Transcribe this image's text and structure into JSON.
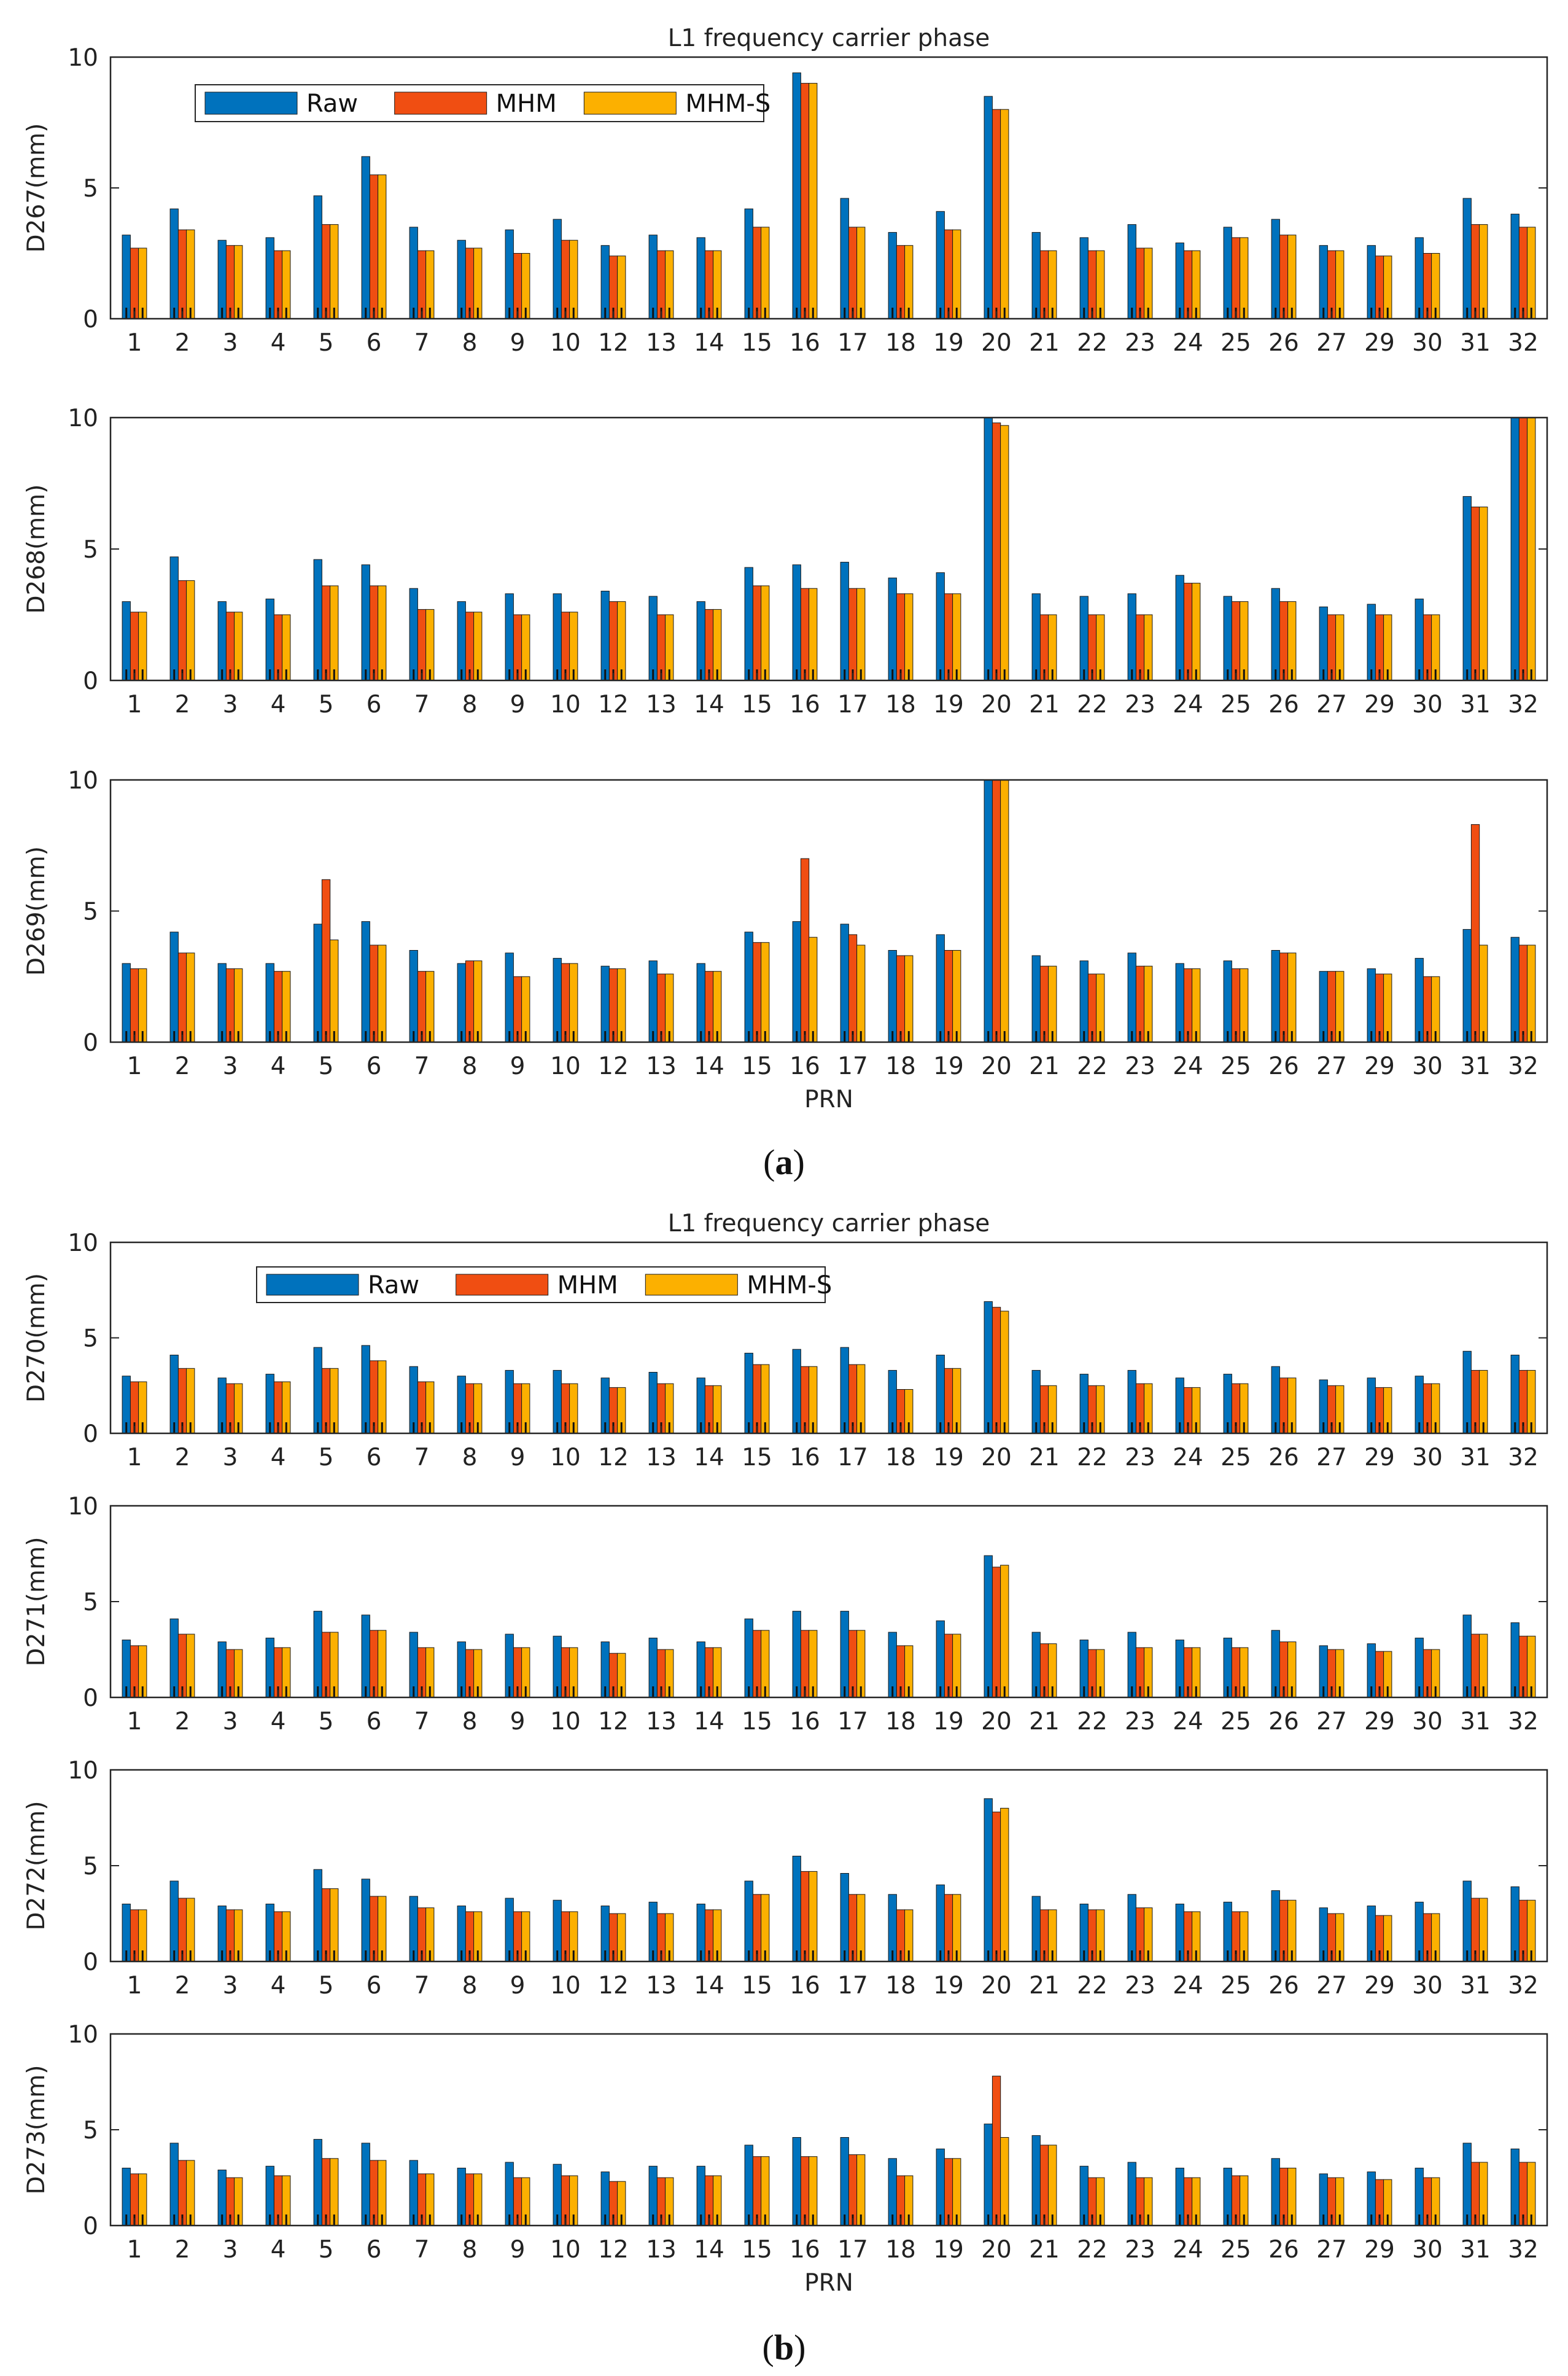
{
  "colors": {
    "raw": "#0072BD",
    "mhm": "#F04E12",
    "mhms": "#FCB000",
    "axis": "#262626"
  },
  "legend": [
    "Raw",
    "MHM",
    "MHM-S"
  ],
  "chart_data": [
    {
      "type": "bar",
      "group": "a",
      "title": "L1 frequency carrier phase",
      "ylabel": "D267(mm)",
      "xlabel": "",
      "ylim": [
        0,
        10
      ],
      "yticks": [
        "0",
        "5",
        "10"
      ],
      "categories": [
        "1",
        "2",
        "3",
        "4",
        "5",
        "6",
        "7",
        "8",
        "9",
        "10",
        "12",
        "13",
        "14",
        "15",
        "16",
        "17",
        "18",
        "19",
        "20",
        "21",
        "22",
        "23",
        "24",
        "25",
        "26",
        "27",
        "29",
        "30",
        "31",
        "32"
      ],
      "series": [
        {
          "name": "Raw",
          "values": [
            3.2,
            4.2,
            3.0,
            3.1,
            4.7,
            6.2,
            3.5,
            3.0,
            3.4,
            3.8,
            2.8,
            3.2,
            3.1,
            4.2,
            9.4,
            4.6,
            3.3,
            4.1,
            8.5,
            3.3,
            3.1,
            3.6,
            2.9,
            3.5,
            3.8,
            2.8,
            2.8,
            3.1,
            4.6,
            4.0
          ]
        },
        {
          "name": "MHM",
          "values": [
            2.7,
            3.4,
            2.8,
            2.6,
            3.6,
            5.5,
            2.6,
            2.7,
            2.5,
            3.0,
            2.4,
            2.6,
            2.6,
            3.5,
            9.0,
            3.5,
            2.8,
            3.4,
            8.0,
            2.6,
            2.6,
            2.7,
            2.6,
            3.1,
            3.2,
            2.6,
            2.4,
            2.5,
            3.6,
            3.5
          ]
        },
        {
          "name": "MHM-S",
          "values": [
            2.7,
            3.4,
            2.8,
            2.6,
            3.6,
            5.5,
            2.6,
            2.7,
            2.5,
            3.0,
            2.4,
            2.6,
            2.6,
            3.5,
            9.0,
            3.5,
            2.8,
            3.4,
            8.0,
            2.6,
            2.6,
            2.7,
            2.6,
            3.1,
            3.2,
            2.6,
            2.4,
            2.5,
            3.6,
            3.5
          ]
        }
      ]
    },
    {
      "type": "bar",
      "group": "a",
      "title": "",
      "ylabel": "D268(mm)",
      "xlabel": "",
      "ylim": [
        0,
        10
      ],
      "yticks": [
        "0",
        "5",
        "10"
      ],
      "categories": [
        "1",
        "2",
        "3",
        "4",
        "5",
        "6",
        "7",
        "8",
        "9",
        "10",
        "12",
        "13",
        "14",
        "15",
        "16",
        "17",
        "18",
        "19",
        "20",
        "21",
        "22",
        "23",
        "24",
        "25",
        "26",
        "27",
        "29",
        "30",
        "31",
        "32"
      ],
      "series": [
        {
          "name": "Raw",
          "values": [
            3.0,
            4.7,
            3.0,
            3.1,
            4.6,
            4.4,
            3.5,
            3.0,
            3.3,
            3.3,
            3.4,
            3.2,
            3.0,
            4.3,
            4.4,
            4.5,
            3.9,
            4.1,
            10.0,
            3.3,
            3.2,
            3.3,
            4.0,
            3.2,
            3.5,
            2.8,
            2.9,
            3.1,
            7.0,
            10.0
          ]
        },
        {
          "name": "MHM",
          "values": [
            2.6,
            3.8,
            2.6,
            2.5,
            3.6,
            3.6,
            2.7,
            2.6,
            2.5,
            2.6,
            3.0,
            2.5,
            2.7,
            3.6,
            3.5,
            3.5,
            3.3,
            3.3,
            9.8,
            2.5,
            2.5,
            2.5,
            3.7,
            3.0,
            3.0,
            2.5,
            2.5,
            2.5,
            6.6,
            10.0
          ]
        },
        {
          "name": "MHM-S",
          "values": [
            2.6,
            3.8,
            2.6,
            2.5,
            3.6,
            3.6,
            2.7,
            2.6,
            2.5,
            2.6,
            3.0,
            2.5,
            2.7,
            3.6,
            3.5,
            3.5,
            3.3,
            3.3,
            9.7,
            2.5,
            2.5,
            2.5,
            3.7,
            3.0,
            3.0,
            2.5,
            2.5,
            2.5,
            6.6,
            10.0
          ]
        }
      ]
    },
    {
      "type": "bar",
      "group": "a",
      "title": "",
      "ylabel": "D269(mm)",
      "xlabel": "PRN",
      "ylim": [
        0,
        10
      ],
      "yticks": [
        "0",
        "5",
        "10"
      ],
      "categories": [
        "1",
        "2",
        "3",
        "4",
        "5",
        "6",
        "7",
        "8",
        "9",
        "10",
        "12",
        "13",
        "14",
        "15",
        "16",
        "17",
        "18",
        "19",
        "20",
        "21",
        "22",
        "23",
        "24",
        "25",
        "26",
        "27",
        "29",
        "30",
        "31",
        "32"
      ],
      "series": [
        {
          "name": "Raw",
          "values": [
            3.0,
            4.2,
            3.0,
            3.0,
            4.5,
            4.6,
            3.5,
            3.0,
            3.4,
            3.2,
            2.9,
            3.1,
            3.0,
            4.2,
            4.6,
            4.5,
            3.5,
            4.1,
            10.0,
            3.3,
            3.1,
            3.4,
            3.0,
            3.1,
            3.5,
            2.7,
            2.8,
            3.2,
            4.3,
            4.0
          ]
        },
        {
          "name": "MHM",
          "values": [
            2.8,
            3.4,
            2.8,
            2.7,
            6.2,
            3.7,
            2.7,
            3.1,
            2.5,
            3.0,
            2.8,
            2.6,
            2.7,
            3.8,
            7.0,
            4.1,
            3.3,
            3.5,
            10.0,
            2.9,
            2.6,
            2.9,
            2.8,
            2.8,
            3.4,
            2.7,
            2.6,
            2.5,
            8.3,
            3.7
          ]
        },
        {
          "name": "MHM-S",
          "values": [
            2.8,
            3.4,
            2.8,
            2.7,
            3.9,
            3.7,
            2.7,
            3.1,
            2.5,
            3.0,
            2.8,
            2.6,
            2.7,
            3.8,
            4.0,
            3.7,
            3.3,
            3.5,
            10.0,
            2.9,
            2.6,
            2.9,
            2.8,
            2.8,
            3.4,
            2.7,
            2.6,
            2.5,
            3.7,
            3.7
          ]
        }
      ]
    },
    {
      "type": "bar",
      "group": "b",
      "title": "L1 frequency carrier phase",
      "ylabel": "D270(mm)",
      "xlabel": "",
      "ylim": [
        0,
        10
      ],
      "yticks": [
        "0",
        "5",
        "10"
      ],
      "categories": [
        "1",
        "2",
        "3",
        "4",
        "5",
        "6",
        "7",
        "8",
        "9",
        "10",
        "12",
        "13",
        "14",
        "15",
        "16",
        "17",
        "18",
        "19",
        "20",
        "21",
        "22",
        "23",
        "24",
        "25",
        "26",
        "27",
        "29",
        "30",
        "31",
        "32"
      ],
      "series": [
        {
          "name": "Raw",
          "values": [
            3.0,
            4.1,
            2.9,
            3.1,
            4.5,
            4.6,
            3.5,
            3.0,
            3.3,
            3.3,
            2.9,
            3.2,
            2.9,
            4.2,
            4.4,
            4.5,
            3.3,
            4.1,
            6.9,
            3.3,
            3.1,
            3.3,
            2.9,
            3.1,
            3.5,
            2.8,
            2.9,
            3.0,
            4.3,
            4.1
          ]
        },
        {
          "name": "MHM",
          "values": [
            2.7,
            3.4,
            2.6,
            2.7,
            3.4,
            3.8,
            2.7,
            2.6,
            2.6,
            2.6,
            2.4,
            2.6,
            2.5,
            3.6,
            3.5,
            3.6,
            2.3,
            3.4,
            6.6,
            2.5,
            2.5,
            2.6,
            2.4,
            2.6,
            2.9,
            2.5,
            2.4,
            2.6,
            3.3,
            3.3
          ]
        },
        {
          "name": "MHM-S",
          "values": [
            2.7,
            3.4,
            2.6,
            2.7,
            3.4,
            3.8,
            2.7,
            2.6,
            2.6,
            2.6,
            2.4,
            2.6,
            2.5,
            3.6,
            3.5,
            3.6,
            2.3,
            3.4,
            6.4,
            2.5,
            2.5,
            2.6,
            2.4,
            2.6,
            2.9,
            2.5,
            2.4,
            2.6,
            3.3,
            3.3
          ]
        }
      ]
    },
    {
      "type": "bar",
      "group": "b",
      "title": "",
      "ylabel": "D271(mm)",
      "xlabel": "",
      "ylim": [
        0,
        10
      ],
      "yticks": [
        "0",
        "5",
        "10"
      ],
      "categories": [
        "1",
        "2",
        "3",
        "4",
        "5",
        "6",
        "7",
        "8",
        "9",
        "10",
        "12",
        "13",
        "14",
        "15",
        "16",
        "17",
        "18",
        "19",
        "20",
        "21",
        "22",
        "23",
        "24",
        "25",
        "26",
        "27",
        "29",
        "30",
        "31",
        "32"
      ],
      "series": [
        {
          "name": "Raw",
          "values": [
            3.0,
            4.1,
            2.9,
            3.1,
            4.5,
            4.3,
            3.4,
            2.9,
            3.3,
            3.2,
            2.9,
            3.1,
            2.9,
            4.1,
            4.5,
            4.5,
            3.4,
            4.0,
            7.4,
            3.4,
            3.0,
            3.4,
            3.0,
            3.1,
            3.5,
            2.7,
            2.8,
            3.1,
            4.3,
            3.9
          ]
        },
        {
          "name": "MHM",
          "values": [
            2.7,
            3.3,
            2.5,
            2.6,
            3.4,
            3.5,
            2.6,
            2.5,
            2.6,
            2.6,
            2.3,
            2.5,
            2.6,
            3.5,
            3.5,
            3.5,
            2.7,
            3.3,
            6.8,
            2.8,
            2.5,
            2.6,
            2.6,
            2.6,
            2.9,
            2.5,
            2.4,
            2.5,
            3.3,
            3.2
          ]
        },
        {
          "name": "MHM-S",
          "values": [
            2.7,
            3.3,
            2.5,
            2.6,
            3.4,
            3.5,
            2.6,
            2.5,
            2.6,
            2.6,
            2.3,
            2.5,
            2.6,
            3.5,
            3.5,
            3.5,
            2.7,
            3.3,
            6.9,
            2.8,
            2.5,
            2.6,
            2.6,
            2.6,
            2.9,
            2.5,
            2.4,
            2.5,
            3.3,
            3.2
          ]
        }
      ]
    },
    {
      "type": "bar",
      "group": "b",
      "title": "",
      "ylabel": "D272(mm)",
      "xlabel": "",
      "ylim": [
        0,
        10
      ],
      "yticks": [
        "0",
        "5",
        "10"
      ],
      "categories": [
        "1",
        "2",
        "3",
        "4",
        "5",
        "6",
        "7",
        "8",
        "9",
        "10",
        "12",
        "13",
        "14",
        "15",
        "16",
        "17",
        "18",
        "19",
        "20",
        "21",
        "22",
        "23",
        "24",
        "25",
        "26",
        "27",
        "29",
        "30",
        "31",
        "32"
      ],
      "series": [
        {
          "name": "Raw",
          "values": [
            3.0,
            4.2,
            2.9,
            3.0,
            4.8,
            4.3,
            3.4,
            2.9,
            3.3,
            3.2,
            2.9,
            3.1,
            3.0,
            4.2,
            5.5,
            4.6,
            3.5,
            4.0,
            8.5,
            3.4,
            3.0,
            3.5,
            3.0,
            3.1,
            3.7,
            2.8,
            2.9,
            3.1,
            4.2,
            3.9
          ]
        },
        {
          "name": "MHM",
          "values": [
            2.7,
            3.3,
            2.7,
            2.6,
            3.8,
            3.4,
            2.8,
            2.6,
            2.6,
            2.6,
            2.5,
            2.5,
            2.7,
            3.5,
            4.7,
            3.5,
            2.7,
            3.5,
            7.8,
            2.7,
            2.7,
            2.8,
            2.6,
            2.6,
            3.2,
            2.5,
            2.4,
            2.5,
            3.3,
            3.2
          ]
        },
        {
          "name": "MHM-S",
          "values": [
            2.7,
            3.3,
            2.7,
            2.6,
            3.8,
            3.4,
            2.8,
            2.6,
            2.6,
            2.6,
            2.5,
            2.5,
            2.7,
            3.5,
            4.7,
            3.5,
            2.7,
            3.5,
            8.0,
            2.7,
            2.7,
            2.8,
            2.6,
            2.6,
            3.2,
            2.5,
            2.4,
            2.5,
            3.3,
            3.2
          ]
        }
      ]
    },
    {
      "type": "bar",
      "group": "b",
      "title": "",
      "ylabel": "D273(mm)",
      "xlabel": "PRN",
      "ylim": [
        0,
        10
      ],
      "yticks": [
        "0",
        "5",
        "10"
      ],
      "categories": [
        "1",
        "2",
        "3",
        "4",
        "5",
        "6",
        "7",
        "8",
        "9",
        "10",
        "12",
        "13",
        "14",
        "15",
        "16",
        "17",
        "18",
        "19",
        "20",
        "21",
        "22",
        "23",
        "24",
        "25",
        "26",
        "27",
        "29",
        "30",
        "31",
        "32"
      ],
      "series": [
        {
          "name": "Raw",
          "values": [
            3.0,
            4.3,
            2.9,
            3.1,
            4.5,
            4.3,
            3.4,
            3.0,
            3.3,
            3.2,
            2.8,
            3.1,
            3.1,
            4.2,
            4.6,
            4.6,
            3.5,
            4.0,
            5.3,
            4.7,
            3.1,
            3.3,
            3.0,
            3.0,
            3.5,
            2.7,
            2.8,
            3.0,
            4.3,
            4.0
          ]
        },
        {
          "name": "MHM",
          "values": [
            2.7,
            3.4,
            2.5,
            2.6,
            3.5,
            3.4,
            2.7,
            2.7,
            2.5,
            2.6,
            2.3,
            2.5,
            2.6,
            3.6,
            3.6,
            3.7,
            2.6,
            3.5,
            7.8,
            4.2,
            2.5,
            2.5,
            2.5,
            2.6,
            3.0,
            2.5,
            2.4,
            2.5,
            3.3,
            3.3
          ]
        },
        {
          "name": "MHM-S",
          "values": [
            2.7,
            3.4,
            2.5,
            2.6,
            3.5,
            3.4,
            2.7,
            2.7,
            2.5,
            2.6,
            2.3,
            2.5,
            2.6,
            3.6,
            3.6,
            3.7,
            2.6,
            3.5,
            4.6,
            4.2,
            2.5,
            2.5,
            2.5,
            2.6,
            3.0,
            2.5,
            2.4,
            2.5,
            3.3,
            3.3
          ]
        }
      ]
    }
  ],
  "subfig_labels": [
    {
      "open": "(",
      "letter": "a",
      "close": ")"
    },
    {
      "open": "(",
      "letter": "b",
      "close": ")"
    }
  ]
}
